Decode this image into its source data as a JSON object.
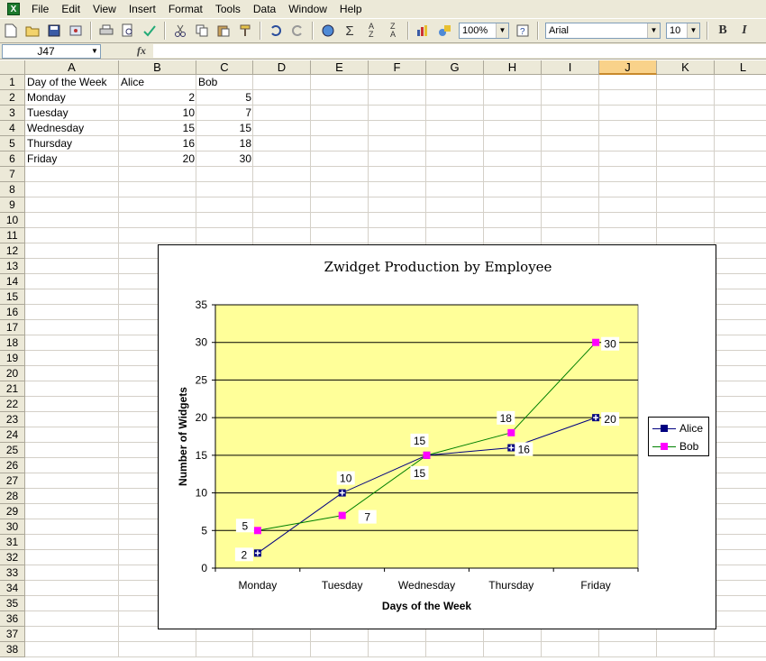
{
  "app": {
    "icon": "excel-icon"
  },
  "menu": [
    "File",
    "Edit",
    "View",
    "Insert",
    "Format",
    "Tools",
    "Data",
    "Window",
    "Help"
  ],
  "toolbar": {
    "icons": [
      "new-icon",
      "open-icon",
      "save-icon",
      "permission-icon",
      "print-icon",
      "print-preview-icon",
      "spelling-icon",
      "cut-icon",
      "copy-icon",
      "paste-icon",
      "format-painter-icon",
      "undo-icon",
      "redo-icon",
      "hyperlink-icon",
      "autosum-icon",
      "sort-ascending-icon",
      "sort-descending-icon",
      "chart-wizard-icon",
      "drawing-icon",
      "help-icon"
    ],
    "zoom": "100%",
    "font_name": "Arial",
    "font_size": "10",
    "bold_label": "B",
    "italic_label": "I"
  },
  "formula_bar": {
    "name_box": "J47",
    "fx_label": "fx",
    "formula": ""
  },
  "columns": [
    "A",
    "B",
    "C",
    "D",
    "E",
    "F",
    "G",
    "H",
    "I",
    "J",
    "K",
    "L"
  ],
  "selected_column": "J",
  "rows": [
    "1",
    "2",
    "3",
    "4",
    "5",
    "6",
    "7",
    "8",
    "9",
    "10",
    "11",
    "12",
    "13",
    "14",
    "15",
    "16",
    "17",
    "18",
    "19",
    "20",
    "21",
    "22",
    "23",
    "24",
    "25",
    "26",
    "27",
    "28",
    "29",
    "30",
    "31",
    "32",
    "33",
    "34",
    "35",
    "36",
    "37",
    "38"
  ],
  "sheet": {
    "header": [
      "Day of the Week",
      "Alice",
      "Bob"
    ],
    "data": [
      [
        "Monday",
        "2",
        "5"
      ],
      [
        "Tuesday",
        "10",
        "7"
      ],
      [
        "Wednesday",
        "15",
        "15"
      ],
      [
        "Thursday",
        "16",
        "18"
      ],
      [
        "Friday",
        "20",
        "30"
      ]
    ]
  },
  "colors": {
    "plot_bg": "#ffff99",
    "alice": "#000080",
    "bob": "#ff00ff",
    "bob_line": "#008000",
    "chrome": "#ece9d8"
  },
  "chart_data": {
    "type": "line",
    "title": "Zwidget Production by Employee",
    "xlabel": "Days of the Week",
    "ylabel": "Number of Widgets",
    "categories": [
      "Monday",
      "Tuesday",
      "Wednesday",
      "Thursday",
      "Friday"
    ],
    "series": [
      {
        "name": "Alice",
        "values": [
          2,
          10,
          15,
          16,
          20
        ]
      },
      {
        "name": "Bob",
        "values": [
          5,
          7,
          15,
          18,
          30
        ]
      }
    ],
    "ylim": [
      0,
      35
    ],
    "yticks": [
      "0",
      "5",
      "10",
      "15",
      "20",
      "25",
      "30",
      "35"
    ],
    "grid": true,
    "legend": "right"
  }
}
